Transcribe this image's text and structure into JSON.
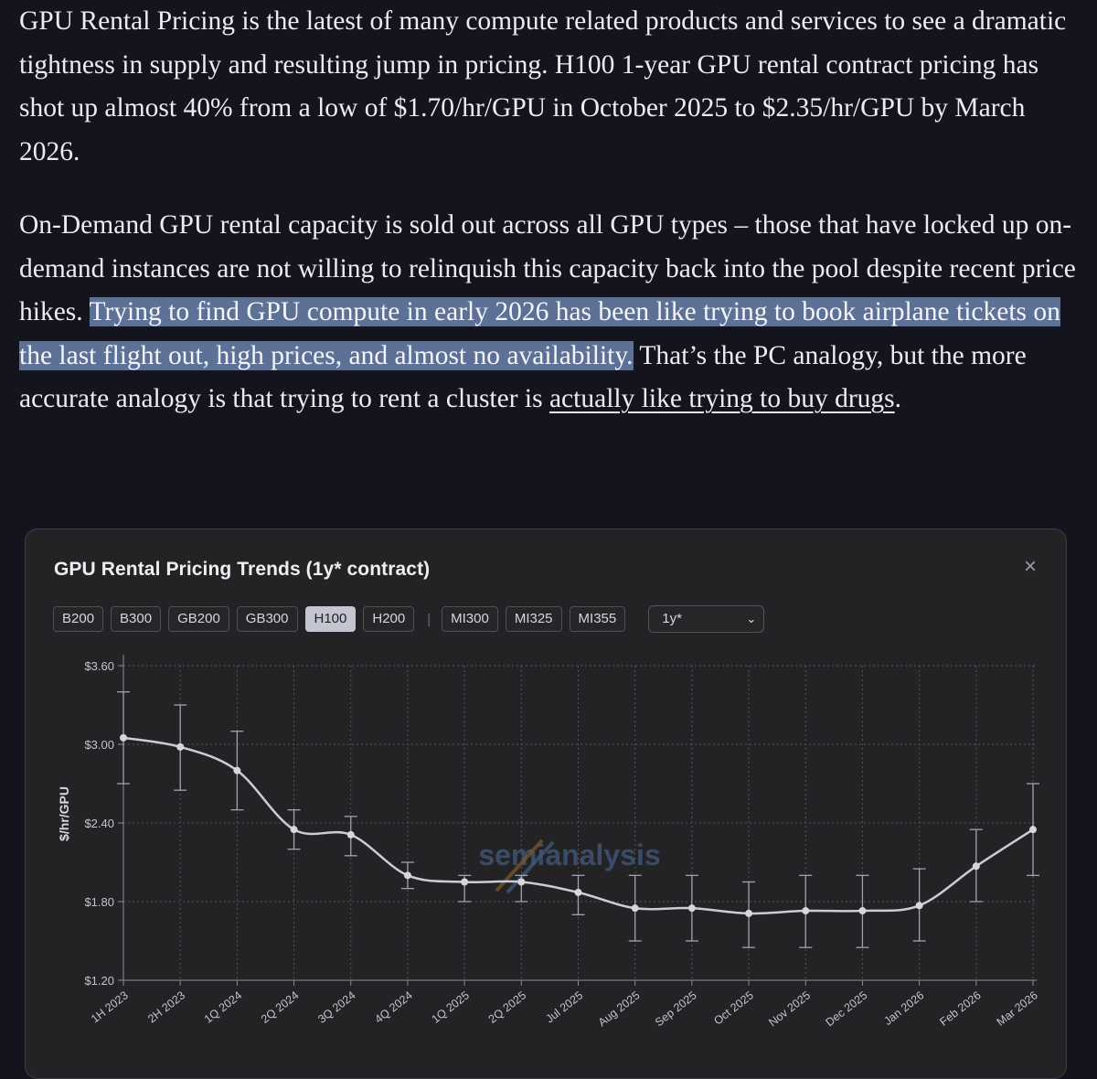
{
  "article": {
    "p1": "GPU Rental Pricing is the latest of many compute related products and services to see a dramatic tightness in supply and resulting jump in pricing. H100 1-year GPU rental contract pricing has shot up almost 40% from a low of $1.70/hr/GPU in October 2025 to $2.35/hr/GPU by March 2026.",
    "p2_part1": "On-Demand GPU rental capacity is sold out across all GPU types – those that have locked up on-demand instances are not willing to relinquish this capacity back into the pool despite recent price hikes. ",
    "p2_highlight": "Trying to find GPU compute in early 2026 has been like trying to book airplane tickets on the last flight out, high prices, and almost no availability.",
    "p2_part2": " That’s the PC analogy, but the more accurate analogy is that trying to rent a cluster is ",
    "p2_link": "actually like trying to buy drugs",
    "p2_end": "."
  },
  "card": {
    "title": "GPU Rental Pricing Trends (1y* contract)",
    "close_icon": "close-icon",
    "tabs": [
      "B200",
      "B300",
      "GB200",
      "GB300",
      "H100",
      "H200"
    ],
    "tabs_amd": [
      "MI300",
      "MI325",
      "MI355"
    ],
    "tab_separator": "|",
    "active_tab": "H100",
    "select_value": "1y*",
    "watermark": "semianalysis"
  },
  "colors": {
    "background": "#14141f",
    "highlight": "#5d7197",
    "card": "#232326",
    "line": "#c9cdd6",
    "grid": "#55555c"
  },
  "chart_data": {
    "type": "line",
    "title": "GPU Rental Pricing Trends (1y* contract)",
    "ylabel": "$/hr/GPU",
    "ylim": [
      1.2,
      3.6
    ],
    "yticks": [
      1.2,
      1.8,
      2.4,
      3.0,
      3.6
    ],
    "ytick_labels": [
      "$1.20",
      "$1.80",
      "$2.40",
      "$3.00",
      "$3.60"
    ],
    "grid": true,
    "categories": [
      "1H 2023",
      "2H 2023",
      "1Q 2024",
      "2Q 2024",
      "3Q 2024",
      "4Q 2024",
      "1Q 2025",
      "2Q 2025",
      "Jul 2025",
      "Aug 2025",
      "Sep 2025",
      "Oct 2025",
      "Nov 2025",
      "Dec 2025",
      "Jan 2026",
      "Feb 2026",
      "Mar 2026"
    ],
    "series": [
      {
        "values": [
          3.05,
          2.98,
          2.8,
          2.35,
          2.31,
          2.0,
          1.95,
          1.95,
          1.87,
          1.75,
          1.75,
          1.71,
          1.73,
          1.73,
          1.77,
          2.07,
          2.35
        ],
        "error_low": [
          2.7,
          2.65,
          2.5,
          2.2,
          2.15,
          1.9,
          1.8,
          1.8,
          1.7,
          1.5,
          1.5,
          1.45,
          1.45,
          1.45,
          1.5,
          1.8,
          2.0
        ],
        "error_high": [
          3.4,
          3.3,
          3.1,
          2.5,
          2.45,
          2.1,
          2.0,
          2.0,
          2.0,
          2.0,
          2.0,
          1.95,
          2.0,
          2.0,
          2.05,
          2.35,
          2.7
        ]
      }
    ]
  }
}
